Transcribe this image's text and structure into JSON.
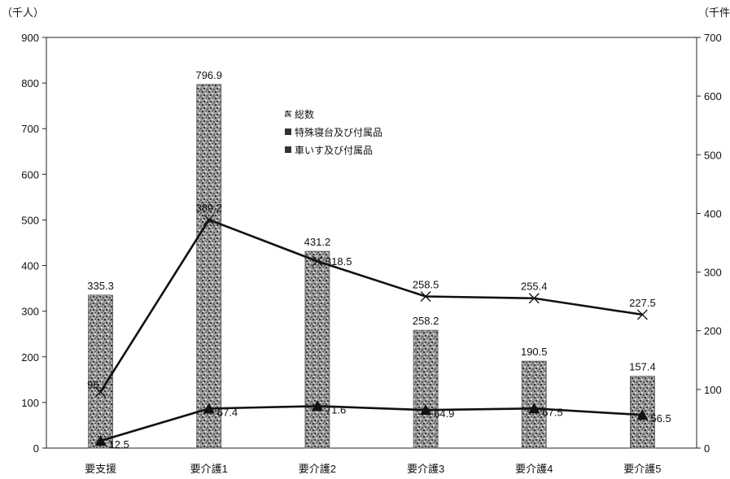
{
  "chart_data": {
    "type": "bar",
    "left_unit": "（千人）",
    "right_unit": "（千件）",
    "categories": [
      "要支援",
      "要介護1",
      "要介護2",
      "要介護3",
      "要介護4",
      "要介護5"
    ],
    "series": [
      {
        "name": "総数",
        "kind": "bar",
        "axis": "left",
        "values": [
          335.3,
          796.9,
          431.2,
          258.2,
          190.5,
          157.4
        ],
        "labels": [
          "335.3",
          "796.9",
          "431.2",
          "258.2",
          "190.5",
          "157.4"
        ]
      },
      {
        "name": "特殊寝台及び付属品",
        "kind": "line",
        "marker": "x",
        "axis": "right",
        "values": [
          96,
          389.2,
          318.5,
          258.5,
          255.4,
          227.5
        ],
        "labels": [
          "96",
          "389.2",
          "318.5",
          "258.5",
          "255.4",
          "227.5"
        ]
      },
      {
        "name": "車いす及び付属品",
        "kind": "line",
        "marker": "triangle",
        "axis": "right",
        "values": [
          12.5,
          67.4,
          71.6,
          64.9,
          67.5,
          56.5
        ],
        "labels": [
          "12.5",
          "67.4",
          "71.6",
          "64.9",
          "67.5",
          "56.5"
        ]
      }
    ],
    "left_axis": {
      "min": 0,
      "max": 900,
      "ticks": [
        "0",
        "100",
        "200",
        "300",
        "400",
        "500",
        "600",
        "700",
        "800",
        "900"
      ]
    },
    "right_axis": {
      "min": 0,
      "max": 700,
      "ticks": [
        "0",
        "100",
        "200",
        "300",
        "400",
        "500",
        "600",
        "700"
      ]
    },
    "legend_position": "upper-middle",
    "grid": false,
    "colors": {
      "bar": "#8a8a8a",
      "bar_dark": "#3c3c3c",
      "line": "#111111"
    }
  }
}
